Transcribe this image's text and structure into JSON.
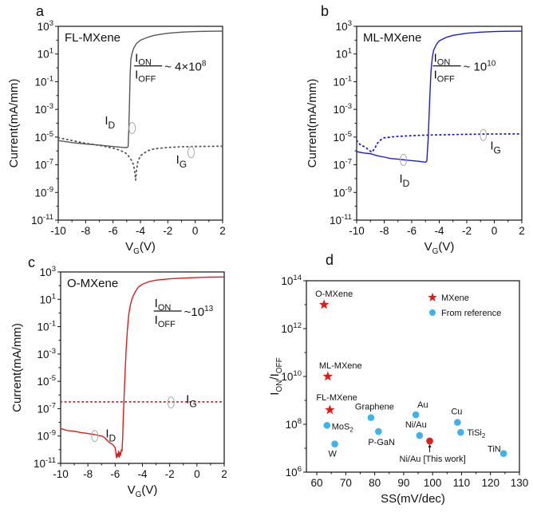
{
  "chart_data": [
    {
      "id": "a",
      "type": "line",
      "panel_label": "a",
      "title": "FL-MXene",
      "xlabel": "V_G(V)",
      "ylabel": "Current(mA/mm)",
      "xlim": [
        -10,
        2
      ],
      "ylim_log10": [
        -11,
        3
      ],
      "yscale": "log",
      "x_ticks": [
        "-10",
        "-8",
        "-6",
        "-4",
        "-2",
        "0",
        "2"
      ],
      "y_ticks": [
        {
          "base": "10",
          "exp": "3"
        },
        {
          "base": "10",
          "exp": "1"
        },
        {
          "base": "10",
          "exp": "-1"
        },
        {
          "base": "10",
          "exp": "-3"
        },
        {
          "base": "10",
          "exp": "-5"
        },
        {
          "base": "10",
          "exp": "-7"
        },
        {
          "base": "10",
          "exp": "-9"
        },
        {
          "base": "10",
          "exp": "-11"
        }
      ],
      "color": "#555555",
      "ratio_annotation": "~ 4×10^8",
      "ratio_text": {
        "prefix": "~ 4×10",
        "exp": "8"
      },
      "series": [
        {
          "name": "I_D",
          "style": "solid",
          "x": [
            -10,
            -9,
            -8,
            -7,
            -6,
            -5.2,
            -5.0,
            -4.9,
            -4.85,
            -4.8,
            -4.75,
            -4.7,
            -4.6,
            -4.5,
            -4.3,
            -4.0,
            -3.5,
            -3.0,
            -2.0,
            -1.0,
            0,
            1,
            2
          ],
          "log10_y": [
            -5.25,
            -5.4,
            -5.5,
            -5.58,
            -5.68,
            -5.75,
            -5.76,
            -5.7,
            -4.5,
            -2.5,
            -0.5,
            0.6,
            1.1,
            1.4,
            1.75,
            2.0,
            2.2,
            2.35,
            2.5,
            2.58,
            2.62,
            2.64,
            2.65
          ]
        },
        {
          "name": "I_G",
          "style": "dotted",
          "x": [
            -10,
            -9,
            -8,
            -7,
            -6,
            -5.5,
            -5.0,
            -4.7,
            -4.5,
            -4.4,
            -4.35,
            -4.3,
            -4.2,
            -4.0,
            -3.5,
            -3.0,
            -2.0,
            -1.0,
            0,
            1,
            2
          ],
          "log10_y": [
            -5.05,
            -5.25,
            -5.45,
            -5.6,
            -5.8,
            -5.95,
            -6.2,
            -6.6,
            -7.0,
            -7.6,
            -8.1,
            -7.5,
            -6.8,
            -6.35,
            -6.0,
            -5.85,
            -5.75,
            -5.7,
            -5.68,
            -5.67,
            -5.66
          ]
        }
      ],
      "labels": [
        {
          "text": "I",
          "sub": "D",
          "at": [
            -6.6,
            -4.1
          ]
        },
        {
          "text": "I",
          "sub": "G",
          "at": [
            -1.4,
            -6.9
          ]
        }
      ],
      "ellipses": [
        {
          "at": [
            -4.6,
            -4.35
          ]
        },
        {
          "at": [
            -0.3,
            -6.1
          ]
        }
      ]
    },
    {
      "id": "b",
      "type": "line",
      "panel_label": "b",
      "title": "ML-MXene",
      "xlabel": "V_G(V)",
      "ylabel": "Current(mA/mm)",
      "xlim": [
        -10,
        2
      ],
      "ylim_log10": [
        -11,
        3
      ],
      "yscale": "log",
      "x_ticks": [
        "-10",
        "-8",
        "-6",
        "-4",
        "-2",
        "0",
        "2"
      ],
      "y_ticks": [
        {
          "base": "10",
          "exp": "3"
        },
        {
          "base": "10",
          "exp": "1"
        },
        {
          "base": "10",
          "exp": "-1"
        },
        {
          "base": "10",
          "exp": "-3"
        },
        {
          "base": "10",
          "exp": "-5"
        },
        {
          "base": "10",
          "exp": "-7"
        },
        {
          "base": "10",
          "exp": "-9"
        },
        {
          "base": "10",
          "exp": "-11"
        }
      ],
      "color": "#1a1adf",
      "ratio_annotation": "~ 10^10",
      "ratio_text": {
        "prefix": "~ 10",
        "exp": "10"
      },
      "series": [
        {
          "name": "I_D",
          "style": "solid",
          "x": [
            -10,
            -9.5,
            -9,
            -8.5,
            -8,
            -7.5,
            -7,
            -6.5,
            -6,
            -5.5,
            -5.0,
            -4.9,
            -4.8,
            -4.7,
            -4.6,
            -4.5,
            -4.4,
            -4.2,
            -4.0,
            -3.5,
            -3.0,
            -2.0,
            -1.0,
            0,
            1,
            2
          ],
          "log10_y": [
            -6.05,
            -6.15,
            -6.2,
            -6.35,
            -6.45,
            -6.55,
            -6.6,
            -6.65,
            -6.7,
            -6.75,
            -6.82,
            -6.7,
            -5.0,
            -2.5,
            -0.3,
            0.8,
            1.3,
            1.7,
            1.95,
            2.2,
            2.35,
            2.5,
            2.58,
            2.62,
            2.64,
            2.65
          ]
        },
        {
          "name": "I_G",
          "style": "dotted",
          "x": [
            -10,
            -9.7,
            -9.4,
            -9.1,
            -8.9,
            -8.7,
            -8.5,
            -8.2,
            -8.0,
            -7.0,
            -6.0,
            -5.0,
            -4.0,
            -2.0,
            0,
            2
          ],
          "log10_y": [
            -5.25,
            -5.6,
            -5.7,
            -5.95,
            -6.1,
            -5.85,
            -5.45,
            -5.15,
            -5.05,
            -4.95,
            -4.9,
            -4.86,
            -4.84,
            -4.8,
            -4.78,
            -4.77
          ]
        }
      ],
      "labels": [
        {
          "text": "I",
          "sub": "D",
          "at": [
            -6.9,
            -8.3
          ]
        },
        {
          "text": "I",
          "sub": "G",
          "at": [
            -0.3,
            -5.9
          ]
        }
      ],
      "ellipses": [
        {
          "at": [
            -6.6,
            -6.65
          ]
        },
        {
          "at": [
            -0.8,
            -4.85
          ]
        }
      ]
    },
    {
      "id": "c",
      "type": "line",
      "panel_label": "c",
      "title": "O-MXene",
      "xlabel": "V_G(V)",
      "ylabel": "Current(mA/mm)",
      "xlim": [
        -10,
        2
      ],
      "ylim_log10": [
        -11,
        3
      ],
      "yscale": "log",
      "x_ticks": [
        "-10",
        "-8",
        "-6",
        "-4",
        "-2",
        "0",
        "2"
      ],
      "y_ticks": [
        {
          "base": "10",
          "exp": "3"
        },
        {
          "base": "10",
          "exp": "1"
        },
        {
          "base": "10",
          "exp": "-1"
        },
        {
          "base": "10",
          "exp": "-3"
        },
        {
          "base": "10",
          "exp": "-5"
        },
        {
          "base": "10",
          "exp": "-7"
        },
        {
          "base": "10",
          "exp": "-9"
        },
        {
          "base": "10",
          "exp": "-11"
        }
      ],
      "color": "#e41a1a",
      "ratio_annotation": "~10^13",
      "ratio_text": {
        "prefix": "~10",
        "exp": "13"
      },
      "series": [
        {
          "name": "I_D",
          "style": "solid",
          "x": [
            -10,
            -9.5,
            -9,
            -8.5,
            -8,
            -7.5,
            -7,
            -6.8,
            -6.6,
            -6.4,
            -6.2,
            -6.0,
            -5.95,
            -5.9,
            -5.85,
            -5.8,
            -5.75,
            -5.7,
            -5.65,
            -5.6,
            -5.55,
            -5.5,
            -5.45,
            -5.4,
            -5.3,
            -5.2,
            -5.1,
            -5.0,
            -4.9,
            -4.8,
            -4.7,
            -4.5,
            -4.3,
            -4.0,
            -3.5,
            -3.0,
            -2.0,
            -1.0,
            0,
            1,
            2
          ],
          "log10_y": [
            -8.45,
            -8.6,
            -8.65,
            -8.75,
            -8.82,
            -8.9,
            -9.0,
            -9.1,
            -9.3,
            -9.5,
            -9.6,
            -9.85,
            -10.2,
            -10.6,
            -10.3,
            -10.5,
            -10.1,
            -10.55,
            -10.2,
            -10.4,
            -10.0,
            -10.1,
            -9.2,
            -7.5,
            -5.0,
            -2.8,
            -1.2,
            -0.1,
            0.5,
            0.9,
            1.2,
            1.6,
            1.9,
            2.1,
            2.3,
            2.4,
            2.5,
            2.55,
            2.6,
            2.62,
            2.63
          ]
        },
        {
          "name": "I_G",
          "style": "dotted",
          "x": [
            -10,
            2
          ],
          "log10_y": [
            -6.5,
            -6.5
          ]
        }
      ],
      "labels": [
        {
          "text": "I",
          "sub": "D",
          "at": [
            -6.7,
            -9.1
          ]
        },
        {
          "text": "I",
          "sub": "G",
          "at": [
            -0.8,
            -6.6
          ]
        }
      ],
      "ellipses": [
        {
          "at": [
            -7.5,
            -9.0
          ]
        },
        {
          "at": [
            -1.9,
            -6.55
          ]
        }
      ]
    },
    {
      "id": "d",
      "type": "scatter",
      "panel_label": "d",
      "xlabel": "SS(mV/dec)",
      "ylabel": "I_ON/I_OFF",
      "xlim": [
        56.4,
        130
      ],
      "ylim_log10": [
        6,
        14
      ],
      "yscale": "log",
      "x_ticks": [
        "60",
        "70",
        "80",
        "90",
        "100",
        "110",
        "120",
        "130"
      ],
      "y_ticks": [
        {
          "base": "10",
          "exp": "14"
        },
        {
          "base": "10",
          "exp": "12"
        },
        {
          "base": "10",
          "exp": "10"
        },
        {
          "base": "10",
          "exp": "8"
        },
        {
          "base": "10",
          "exp": "6"
        }
      ],
      "legend": {
        "position": "top-right",
        "entries": [
          {
            "label": "MXene",
            "marker": "star",
            "color": "#e41a1a"
          },
          {
            "label": "From reference",
            "marker": "circle",
            "color": "#3fb2ee"
          }
        ]
      },
      "series": [
        {
          "name": "MXene",
          "marker": "star",
          "color": "#e41a1a",
          "points": [
            {
              "label": "O-MXene",
              "x": 62.5,
              "y": 10000000000000.0
            },
            {
              "label": "ML-MXene",
              "x": 63.8,
              "y": 10000000000.0
            },
            {
              "label": "FL-MXene",
              "x": 64.5,
              "y": 400000000.0
            }
          ]
        },
        {
          "name": "From reference",
          "marker": "circle",
          "color": "#3fb2ee",
          "points": [
            {
              "label": "MoS2",
              "x": 63.5,
              "y": 90000000.0
            },
            {
              "label": "W",
              "x": 66.2,
              "y": 15000000.0
            },
            {
              "label": "Graphene",
              "x": 78.7,
              "y": 190000000.0
            },
            {
              "label": "P-GaN",
              "x": 81.3,
              "y": 50000000.0
            },
            {
              "label": "Au",
              "x": 94.2,
              "y": 250000000.0
            },
            {
              "label": "Ni/Au",
              "x": 95.5,
              "y": 34000000.0
            },
            {
              "label": "Cu",
              "x": 108.6,
              "y": 120000000.0
            },
            {
              "label": "TiSi2",
              "x": 109.7,
              "y": 46000000.0
            },
            {
              "label": "TiN",
              "x": 124.5,
              "y": 6000000.0
            }
          ]
        },
        {
          "name": "This work",
          "marker": "circle",
          "color": "#e41a1a",
          "points": [
            {
              "label": "Ni/Au [This work]",
              "x": 99.0,
              "y": 20000000.0
            }
          ]
        }
      ]
    }
  ]
}
